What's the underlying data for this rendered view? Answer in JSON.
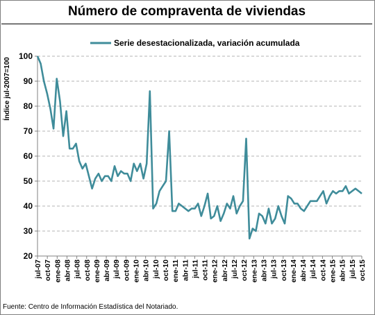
{
  "title": "Número de compraventa de viviendas",
  "source": "Fuente: Centro de Información Estadística del Notariado.",
  "colors": {
    "series": "#3f8c9a",
    "grid": "#b3b3b3",
    "axis": "#808080"
  },
  "chart_data": {
    "type": "line",
    "title": "Número de compraventa de viviendas",
    "ylabel": "Índice jul-2007=100",
    "xlabel": "",
    "ylim": [
      20,
      100
    ],
    "yticks": [
      20,
      30,
      40,
      50,
      60,
      70,
      80,
      90,
      100
    ],
    "grid": true,
    "legend": "top",
    "xticks": [
      "jul-07",
      "oct-07",
      "ene-08",
      "abr-08",
      "jul-08",
      "oct-08",
      "ene-09",
      "abr-09",
      "jul-09",
      "oct-09",
      "ene-10",
      "abr-10",
      "jul-10",
      "oct-10",
      "ene-11",
      "abr-11",
      "jul-11",
      "oct-11",
      "ene-12",
      "abr-12",
      "jul-12",
      "oct-12",
      "ene-13",
      "abr-13",
      "jul-13",
      "oct-13",
      "ene-14",
      "abr-14",
      "jul-14",
      "oct-14",
      "ene-15",
      "abr-15",
      "jul-15",
      "oct-15"
    ],
    "series": [
      {
        "name": "Serie desestacionalizada, variación acumulada",
        "values": [
          100,
          97,
          90,
          85,
          79,
          71,
          91,
          82,
          68,
          78,
          63,
          63,
          65,
          58,
          55,
          57,
          52,
          47,
          51,
          53,
          50,
          52,
          52,
          50,
          56,
          52,
          54,
          53,
          53,
          50,
          57,
          54,
          57,
          51,
          57,
          86,
          39,
          41,
          46,
          48,
          50,
          70,
          38,
          38,
          41,
          40,
          39,
          38,
          39,
          39,
          41,
          36,
          40,
          45,
          35,
          36,
          40,
          34,
          37,
          41,
          39,
          44,
          37,
          40,
          42,
          67,
          27,
          31,
          30,
          37,
          36,
          33,
          39,
          33,
          35,
          40,
          36,
          33,
          44,
          43,
          41,
          41,
          39,
          38,
          40,
          42,
          42,
          42,
          44,
          46,
          41,
          44,
          46,
          45,
          46,
          46,
          48,
          45,
          46,
          47,
          46,
          45
        ]
      }
    ]
  }
}
